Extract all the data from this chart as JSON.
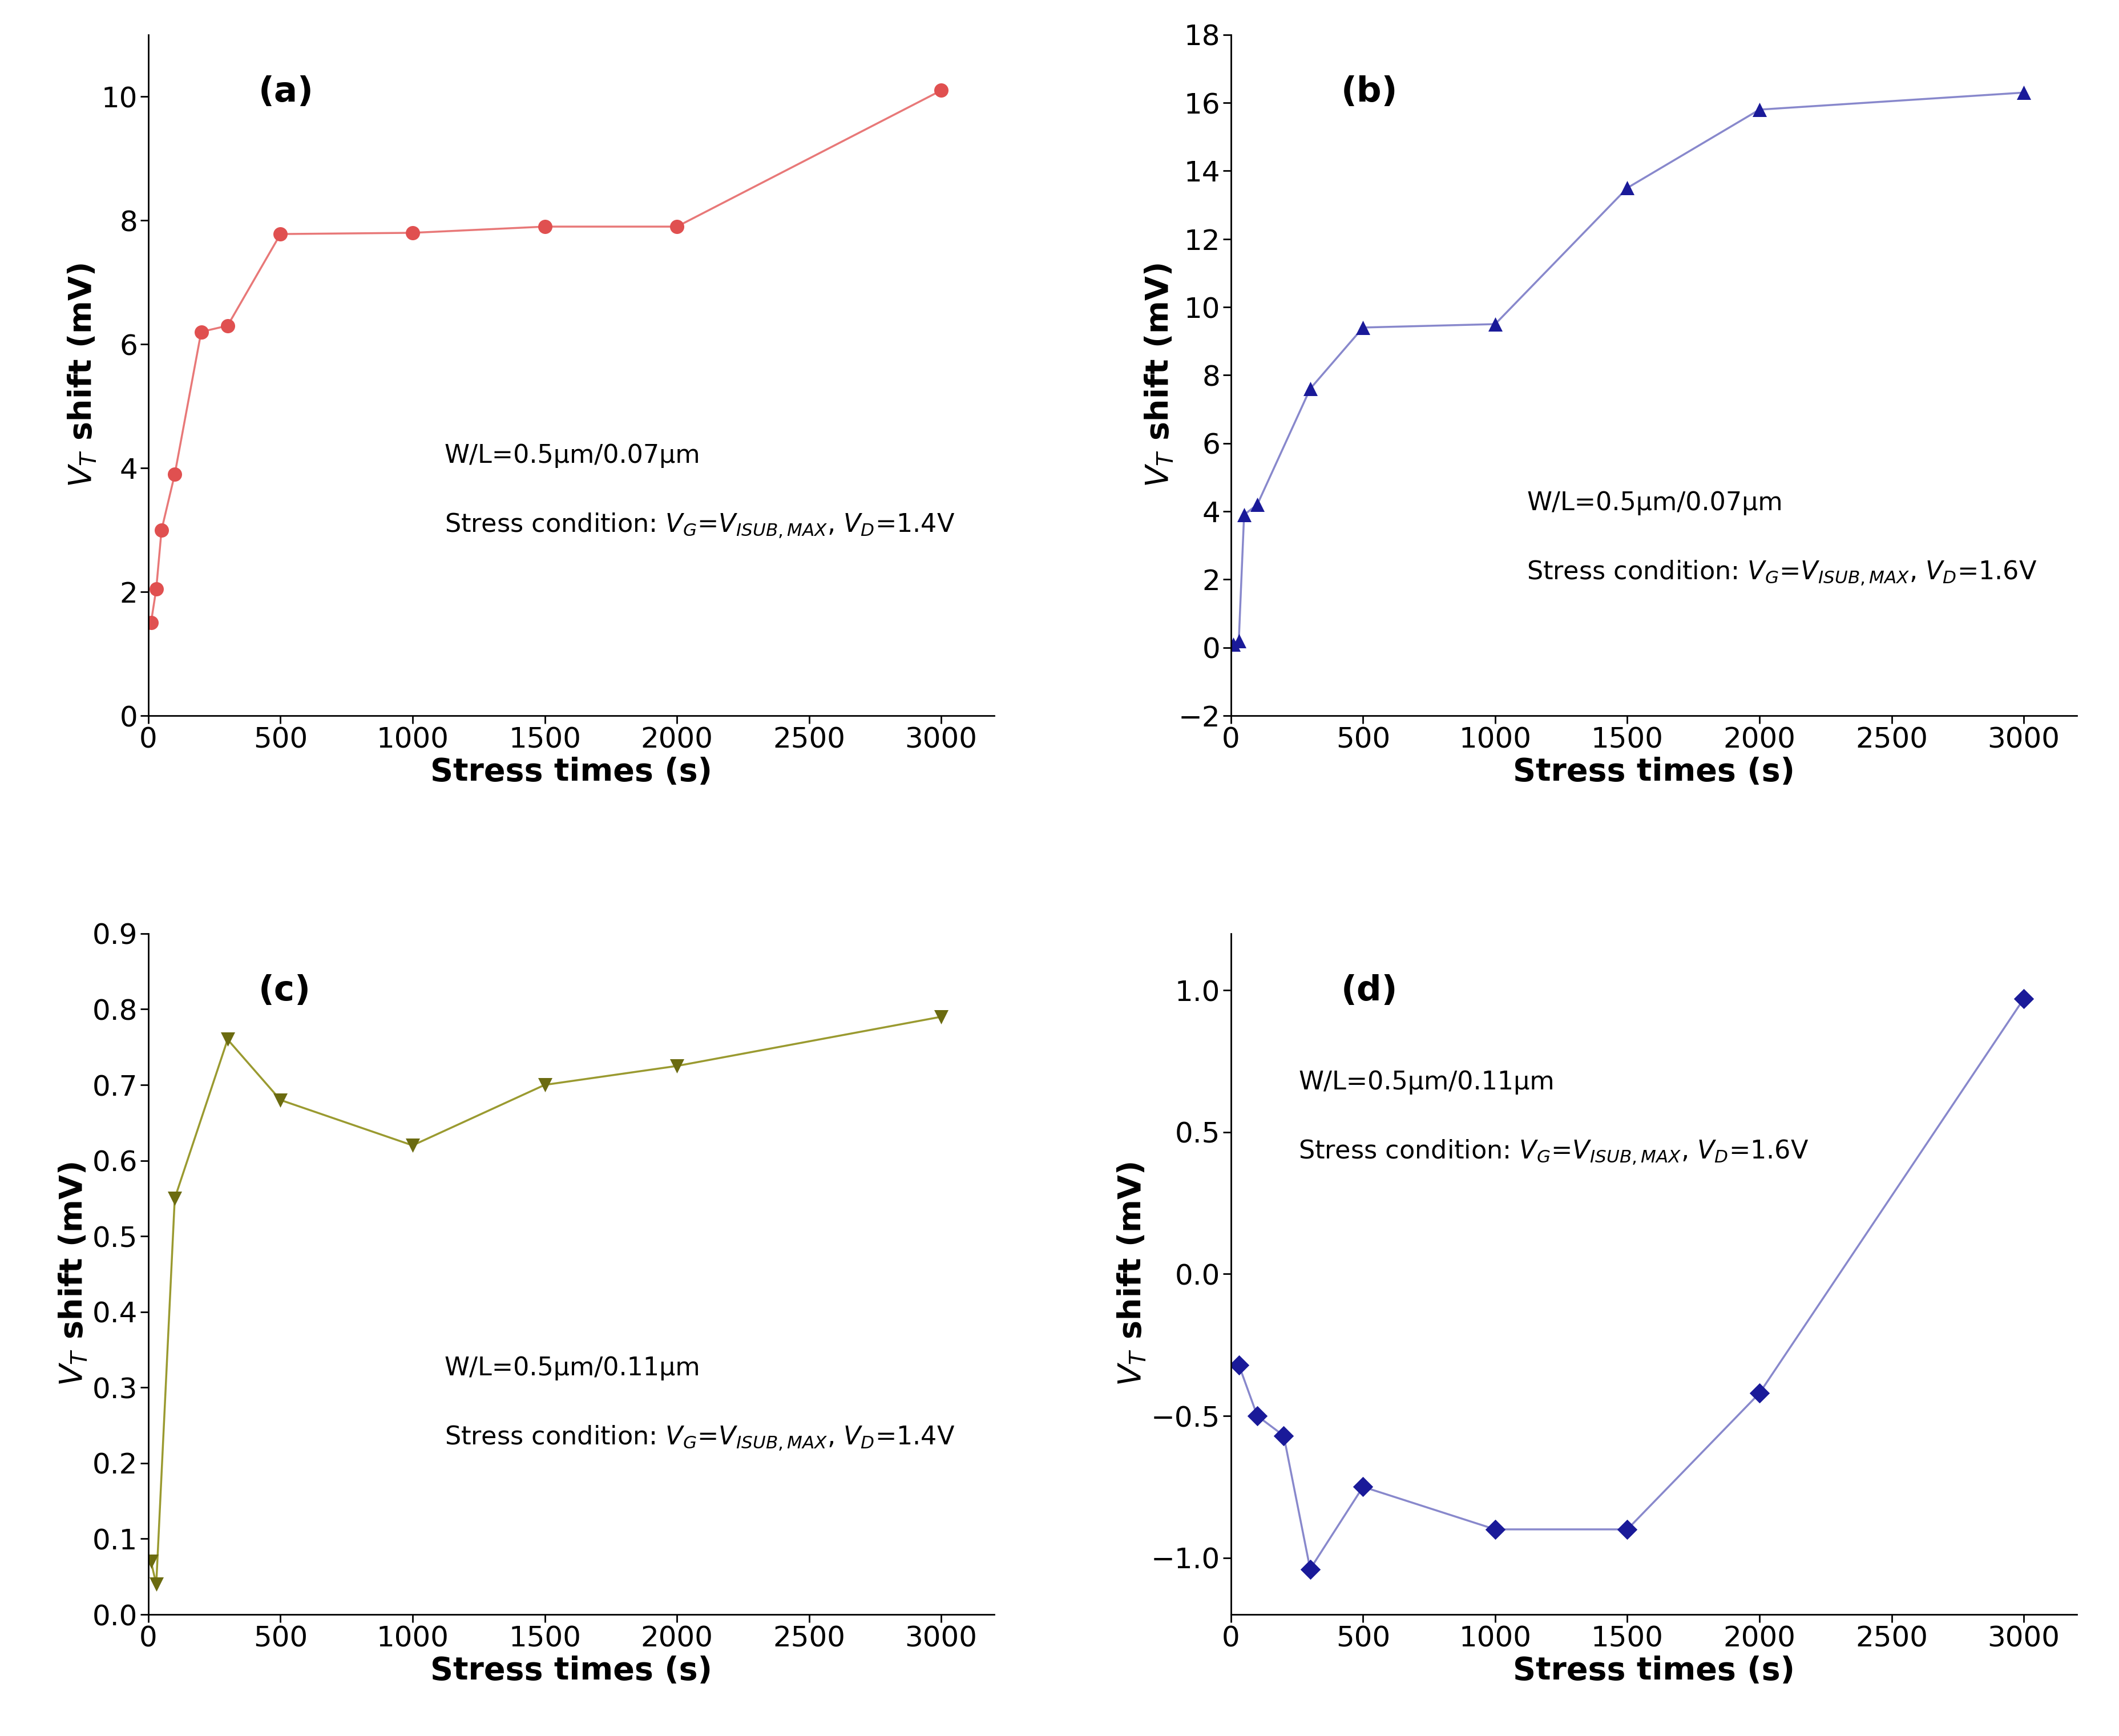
{
  "a": {
    "x": [
      10,
      30,
      50,
      100,
      200,
      300,
      500,
      1000,
      1500,
      2000,
      3000
    ],
    "y": [
      1.5,
      2.05,
      3.0,
      3.9,
      6.2,
      6.3,
      7.78,
      7.8,
      7.9,
      7.9,
      10.1
    ],
    "line_color": "#e87878",
    "marker_color": "#e05050",
    "marker": "o",
    "label": "(a)",
    "ann1": "W/L=0.5μm/0.07μm",
    "ann2": "Stress condition: $V_{G}$=$V_{ISUB,MAX}$, $V_{D}$=1.4V",
    "ann_x": 0.35,
    "ann_y1": 0.4,
    "ann_y2": 0.3,
    "ylim": [
      0,
      11
    ],
    "yticks": [
      0,
      2,
      4,
      6,
      8,
      10
    ],
    "xlim": [
      0,
      3200
    ],
    "xticks": [
      0,
      500,
      1000,
      1500,
      2000,
      2500,
      3000
    ]
  },
  "b": {
    "x": [
      10,
      30,
      50,
      100,
      300,
      500,
      1000,
      1500,
      2000,
      3000
    ],
    "y": [
      0.1,
      0.2,
      3.9,
      4.2,
      7.6,
      9.4,
      9.5,
      13.5,
      15.8,
      16.3
    ],
    "line_color": "#8888cc",
    "marker_color": "#1a1a99",
    "marker": "^",
    "label": "(b)",
    "ann1": "W/L=0.5μm/0.07μm",
    "ann2": "Stress condition: $V_{G}$=$V_{ISUB,MAX}$, $V_{D}$=1.6V",
    "ann_x": 0.35,
    "ann_y1": 0.33,
    "ann_y2": 0.23,
    "ylim": [
      -2,
      18
    ],
    "yticks": [
      -2,
      0,
      2,
      4,
      6,
      8,
      10,
      12,
      14,
      16,
      18
    ],
    "xlim": [
      0,
      3200
    ],
    "xticks": [
      0,
      500,
      1000,
      1500,
      2000,
      2500,
      3000
    ]
  },
  "c": {
    "x": [
      10,
      30,
      100,
      300,
      500,
      1000,
      1500,
      2000,
      3000
    ],
    "y": [
      0.07,
      0.04,
      0.55,
      0.76,
      0.68,
      0.62,
      0.7,
      0.725,
      0.79
    ],
    "line_color": "#9a9a30",
    "marker_color": "#6b6b10",
    "marker": "v",
    "label": "(c)",
    "ann1": "W/L=0.5μm/0.11μm",
    "ann2": "Stress condition: $V_{G}$=$V_{ISUB,MAX}$, $V_{D}$=1.4V",
    "ann_x": 0.35,
    "ann_y1": 0.38,
    "ann_y2": 0.28,
    "ylim": [
      0,
      0.9
    ],
    "yticks": [
      0.0,
      0.1,
      0.2,
      0.3,
      0.4,
      0.5,
      0.6,
      0.7,
      0.8,
      0.9
    ],
    "xlim": [
      0,
      3200
    ],
    "xticks": [
      0,
      500,
      1000,
      1500,
      2000,
      2500,
      3000
    ]
  },
  "d": {
    "x": [
      30,
      100,
      200,
      300,
      500,
      1000,
      1500,
      2000,
      3000
    ],
    "y": [
      -0.32,
      -0.5,
      -0.57,
      -1.04,
      -0.75,
      -0.9,
      -0.9,
      -0.42,
      0.97
    ],
    "line_color": "#8888cc",
    "marker_color": "#1a1a99",
    "marker": "D",
    "label": "(d)",
    "ann1": "W/L=0.5μm/0.11μm",
    "ann2": "Stress condition: $V_{G}$=$V_{ISUB,MAX}$, $V_{D}$=1.6V",
    "ann_x": 0.08,
    "ann_y1": 0.8,
    "ann_y2": 0.7,
    "ylim": [
      -1.2,
      1.2
    ],
    "yticks": [
      -1.0,
      -0.5,
      0.0,
      0.5,
      1.0
    ],
    "xlim": [
      0,
      3200
    ],
    "xticks": [
      0,
      500,
      1000,
      1500,
      2000,
      2500,
      3000
    ]
  },
  "xlabel": "Stress times (s)",
  "ylabel": "$V_{T}$ shift (mV)",
  "bg": "#ffffff"
}
